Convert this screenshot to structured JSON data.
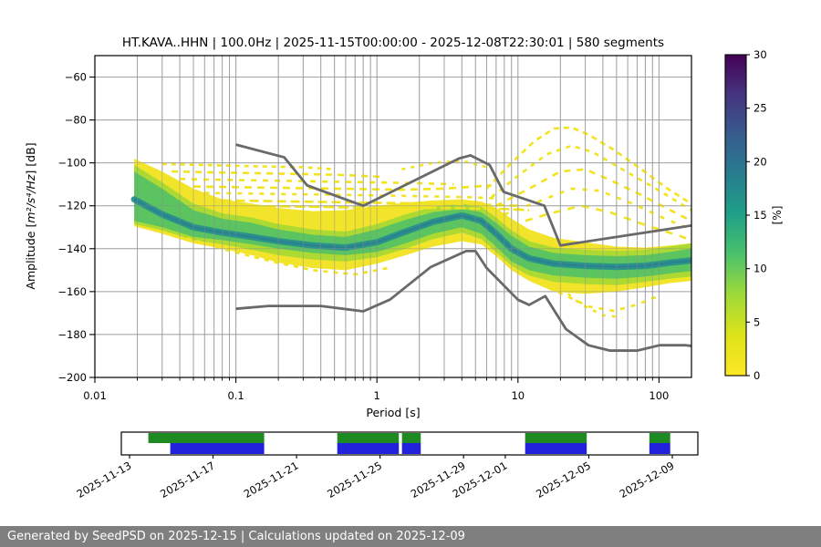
{
  "title": "HT.KAVA..HHN | 100.0Hz | 2025-11-15T00:00:00 - 2025-12-08T22:30:01 | 580 segments",
  "footer": {
    "text": "Generated by SeedPSD on 2025-12-15 | Calculations updated on 2025-12-09",
    "bg": "#7f7f7f",
    "fg": "#ffffff"
  },
  "chart_data": {
    "type": "heatmap",
    "title": "HT.KAVA..HHN | 100.0Hz | 2025-11-15T00:00:00 - 2025-12-08T22:30:01 | 580 segments",
    "xlabel": "Period [s]",
    "ylabel": "Amplitude [m²/s⁴/Hz] [dB]",
    "ylabel_parts": [
      {
        "t": "Amplitude [",
        "i": 0
      },
      {
        "t": "m²/s⁴/Hz",
        "i": 1
      },
      {
        "t": "] [dB]",
        "i": 0
      }
    ],
    "xscale": "log",
    "xlim": [
      0.01,
      169
    ],
    "ylim": [
      -200,
      -50
    ],
    "xticks": [
      0.01,
      0.1,
      1,
      10,
      100
    ],
    "xtick_labels": [
      "0.01",
      "0.1",
      "1",
      "10",
      "100"
    ],
    "yticks": [
      -200,
      -180,
      -160,
      -140,
      -120,
      -100,
      -80,
      -60
    ],
    "grid": true,
    "colorbar": {
      "label": "[%]",
      "min": 0,
      "max": 30,
      "ticks": [
        0,
        5,
        10,
        15,
        20,
        25,
        30
      ],
      "colormap": "viridis (yellow=0 at bottom, dark purple=30 at top)",
      "stops": [
        {
          "o": 0.0,
          "c": "#440154"
        },
        {
          "o": 0.12,
          "c": "#46327e"
        },
        {
          "o": 0.25,
          "c": "#365c8d"
        },
        {
          "o": 0.38,
          "c": "#277f8e"
        },
        {
          "o": 0.5,
          "c": "#1fa187"
        },
        {
          "o": 0.62,
          "c": "#4ac16d"
        },
        {
          "o": 0.75,
          "c": "#a0da39"
        },
        {
          "o": 0.88,
          "c": "#e0e318"
        },
        {
          "o": 1.0,
          "c": "#fde725"
        }
      ]
    },
    "histogram": {
      "comment": "PPSD 2-D histogram approximated as nested density bands; dB vs period(s)",
      "periods": [
        0.019,
        0.03,
        0.05,
        0.08,
        0.13,
        0.2,
        0.35,
        0.6,
        1.0,
        1.6,
        2.5,
        4.0,
        5.5,
        7.0,
        9.0,
        12,
        18,
        30,
        50,
        80,
        120,
        169
      ],
      "mode_db": [
        -117,
        -124,
        -130,
        -132.5,
        -134.5,
        -136.5,
        -138.5,
        -139.5,
        -137,
        -132,
        -127.5,
        -124.5,
        -127,
        -133,
        -140,
        -144.5,
        -147,
        -148,
        -148.5,
        -148,
        -146.5,
        -145.5
      ],
      "green_top": [
        -104,
        -112,
        -122,
        -126,
        -128,
        -131,
        -133.5,
        -134.5,
        -131,
        -126.5,
        -123,
        -121.5,
        -123,
        -128,
        -134,
        -139,
        -142,
        -143,
        -143.5,
        -143,
        -141.5,
        -140
      ],
      "green_bottom": [
        -127,
        -130,
        -134.5,
        -136,
        -138,
        -140,
        -142,
        -143,
        -141.5,
        -137.5,
        -133,
        -130,
        -133,
        -139,
        -146,
        -150,
        -152.5,
        -153.5,
        -154,
        -153,
        -151.5,
        -150.5
      ],
      "mid_top": [
        -101,
        -109,
        -119,
        -123.5,
        -125.5,
        -128.5,
        -131,
        -132,
        -128.5,
        -124,
        -120.5,
        -119,
        -120.5,
        -125.5,
        -131.5,
        -136.5,
        -139.5,
        -140.5,
        -141,
        -140.5,
        -139,
        -137.5
      ],
      "mid_bottom": [
        -128.5,
        -131.5,
        -136,
        -138,
        -140.5,
        -143,
        -145,
        -146,
        -144,
        -140,
        -135.5,
        -132.5,
        -135.5,
        -141.5,
        -148,
        -152.5,
        -155.5,
        -156.5,
        -157,
        -155.5,
        -154,
        -153
      ],
      "yellow_top": [
        -98,
        -104,
        -112,
        -117,
        -119,
        -121,
        -122.5,
        -122,
        -120,
        -118.5,
        -117.5,
        -117,
        -118,
        -121,
        -126,
        -131,
        -135,
        -137,
        -139,
        -139.5,
        -138.5,
        -137.5
      ],
      "yellow_bottom": [
        -129.5,
        -133,
        -137.5,
        -140,
        -143,
        -146.5,
        -149,
        -150,
        -147,
        -143,
        -139,
        -136.5,
        -138,
        -143.5,
        -150,
        -155,
        -160,
        -161,
        -160,
        -158,
        -156,
        -155
      ],
      "colors": {
        "yellow": "#f1e31f",
        "yellowgreen": "#a8d934",
        "green": "#56c262",
        "teal": "#27918c",
        "teal_core": "#2c7f8e"
      }
    },
    "event_traces": [
      {
        "dash": "5 5",
        "points": [
          [
            0.03,
            -100.5
          ],
          [
            0.06,
            -101
          ],
          [
            0.12,
            -101.5
          ],
          [
            0.3,
            -102
          ],
          [
            0.5,
            -103
          ]
        ]
      },
      {
        "dash": "7 6",
        "points": [
          [
            0.035,
            -104
          ],
          [
            0.08,
            -104.5
          ],
          [
            0.2,
            -105
          ],
          [
            0.5,
            -105.5
          ],
          [
            1.1,
            -106.5
          ]
        ]
      },
      {
        "dash": "6 7",
        "points": [
          [
            0.04,
            -107.5
          ],
          [
            0.1,
            -108
          ],
          [
            0.3,
            -108.5
          ],
          [
            0.8,
            -109
          ],
          [
            2,
            -109.5
          ],
          [
            3.5,
            -110
          ]
        ]
      },
      {
        "dash": "8 6",
        "points": [
          [
            0.05,
            -111
          ],
          [
            0.15,
            -111.5
          ],
          [
            0.5,
            -112
          ],
          [
            1.5,
            -112.5
          ],
          [
            3,
            -112
          ],
          [
            5,
            -111
          ],
          [
            6.5,
            -110.5
          ]
        ]
      },
      {
        "dash": "5 7",
        "points": [
          [
            0.06,
            -114
          ],
          [
            0.2,
            -114.5
          ],
          [
            0.7,
            -115
          ],
          [
            2,
            -115.5
          ],
          [
            4.5,
            -116
          ],
          [
            7,
            -116.5
          ]
        ]
      },
      {
        "dash": "10 5",
        "points": [
          [
            0.08,
            -117.5
          ],
          [
            0.25,
            -118
          ],
          [
            0.8,
            -118.5
          ],
          [
            2.5,
            -119
          ],
          [
            6,
            -119.5
          ],
          [
            10,
            -120
          ]
        ]
      },
      {
        "dash": "12 4",
        "points": [
          [
            0.1,
            -120
          ],
          [
            0.4,
            -120.5
          ],
          [
            1,
            -121
          ],
          [
            3,
            -121
          ],
          [
            8,
            -121.5
          ],
          [
            12,
            -122
          ]
        ]
      },
      {
        "dash": "4 6",
        "points": [
          [
            1.5,
            -103
          ],
          [
            2.5,
            -100
          ],
          [
            4,
            -99
          ],
          [
            6,
            -102
          ]
        ]
      },
      {
        "dash": "6 5",
        "points": [
          [
            6,
            -112
          ],
          [
            9,
            -100
          ],
          [
            13,
            -90
          ],
          [
            18,
            -84
          ],
          [
            24,
            -83.5
          ],
          [
            32,
            -87
          ],
          [
            48,
            -94
          ],
          [
            75,
            -103
          ],
          [
            115,
            -112
          ],
          [
            169,
            -119
          ]
        ]
      },
      {
        "dash": "5 6",
        "points": [
          [
            6.5,
            -116
          ],
          [
            10,
            -106
          ],
          [
            16,
            -96
          ],
          [
            24,
            -92
          ],
          [
            34,
            -95
          ],
          [
            55,
            -103
          ],
          [
            95,
            -112
          ],
          [
            169,
            -122
          ]
        ]
      },
      {
        "dash": "7 7",
        "points": [
          [
            7,
            -120
          ],
          [
            12,
            -112
          ],
          [
            20,
            -104
          ],
          [
            30,
            -103
          ],
          [
            45,
            -108
          ],
          [
            75,
            -115
          ],
          [
            120,
            -122
          ],
          [
            169,
            -127
          ]
        ]
      },
      {
        "dash": "5 8",
        "points": [
          [
            8,
            -124
          ],
          [
            14,
            -118
          ],
          [
            24,
            -112
          ],
          [
            38,
            -113
          ],
          [
            65,
            -119
          ],
          [
            110,
            -126
          ],
          [
            169,
            -131
          ]
        ]
      },
      {
        "dash": "8 8",
        "points": [
          [
            9,
            -129
          ],
          [
            16,
            -124
          ],
          [
            28,
            -120
          ],
          [
            45,
            -123
          ],
          [
            80,
            -129
          ],
          [
            140,
            -134
          ],
          [
            169,
            -136
          ]
        ]
      },
      {
        "dash": "5 7",
        "points": [
          [
            14,
            -156
          ],
          [
            22,
            -162
          ],
          [
            32,
            -167
          ],
          [
            48,
            -169
          ],
          [
            70,
            -166
          ],
          [
            100,
            -162
          ]
        ]
      },
      {
        "dash": "4 7",
        "points": [
          [
            20,
            -158
          ],
          [
            28,
            -166
          ],
          [
            40,
            -171
          ],
          [
            55,
            -172
          ]
        ]
      },
      {
        "dash": "5 6",
        "points": [
          [
            0.045,
            -135
          ],
          [
            0.09,
            -141
          ],
          [
            0.18,
            -146
          ],
          [
            0.35,
            -150
          ],
          [
            0.7,
            -152
          ],
          [
            1.2,
            -149
          ]
        ]
      }
    ],
    "noise_models": {
      "color": "#696969",
      "nhnm": [
        [
          0.1,
          -91.5
        ],
        [
          0.22,
          -97.4
        ],
        [
          0.32,
          -110.5
        ],
        [
          0.8,
          -120.0
        ],
        [
          3.8,
          -98.0
        ],
        [
          4.6,
          -96.5
        ],
        [
          6.3,
          -101.0
        ],
        [
          7.9,
          -113.5
        ],
        [
          15.4,
          -120.0
        ],
        [
          20.0,
          -138.5
        ],
        [
          354.8,
          -126.0
        ]
      ],
      "nlnm": [
        [
          0.1,
          -168.0
        ],
        [
          0.17,
          -166.7
        ],
        [
          0.4,
          -166.7
        ],
        [
          0.8,
          -169.2
        ],
        [
          1.24,
          -163.7
        ],
        [
          2.4,
          -148.6
        ],
        [
          4.3,
          -141.1
        ],
        [
          5.0,
          -141.1
        ],
        [
          6.0,
          -149.0
        ],
        [
          10.0,
          -163.8
        ],
        [
          12.0,
          -166.2
        ],
        [
          15.6,
          -162.1
        ],
        [
          21.9,
          -177.5
        ],
        [
          31.6,
          -185.0
        ],
        [
          45.0,
          -187.5
        ],
        [
          70.0,
          -187.5
        ],
        [
          101.0,
          -185.0
        ],
        [
          154.0,
          -185.0
        ],
        [
          328.0,
          -187.5
        ]
      ]
    },
    "timeline": {
      "comment": "day offsets measured from 2025-11-13 00:00",
      "xlim_days": [
        -0.39,
        27.22
      ],
      "ticks": [
        {
          "day": 0,
          "label": "2025-11-13"
        },
        {
          "day": 4,
          "label": "2025-11-17"
        },
        {
          "day": 8,
          "label": "2025-11-21"
        },
        {
          "day": 12,
          "label": "2025-11-25"
        },
        {
          "day": 16,
          "label": "2025-11-29"
        },
        {
          "day": 18,
          "label": "2025-12-01"
        },
        {
          "day": 22,
          "label": "2025-12-05"
        },
        {
          "day": 26,
          "label": "2025-12-09"
        }
      ],
      "green_segments_days": [
        [
          0.9,
          6.45
        ],
        [
          9.95,
          12.9
        ],
        [
          13.05,
          13.95
        ],
        [
          18.95,
          21.9
        ],
        [
          24.9,
          25.9
        ]
      ],
      "blue_segments_days": [
        [
          1.95,
          6.45
        ],
        [
          9.95,
          12.9
        ],
        [
          13.05,
          13.95
        ],
        [
          18.95,
          21.9
        ],
        [
          24.9,
          25.9
        ]
      ],
      "green_color": "#1e8b22",
      "blue_color": "#2222dc"
    }
  }
}
